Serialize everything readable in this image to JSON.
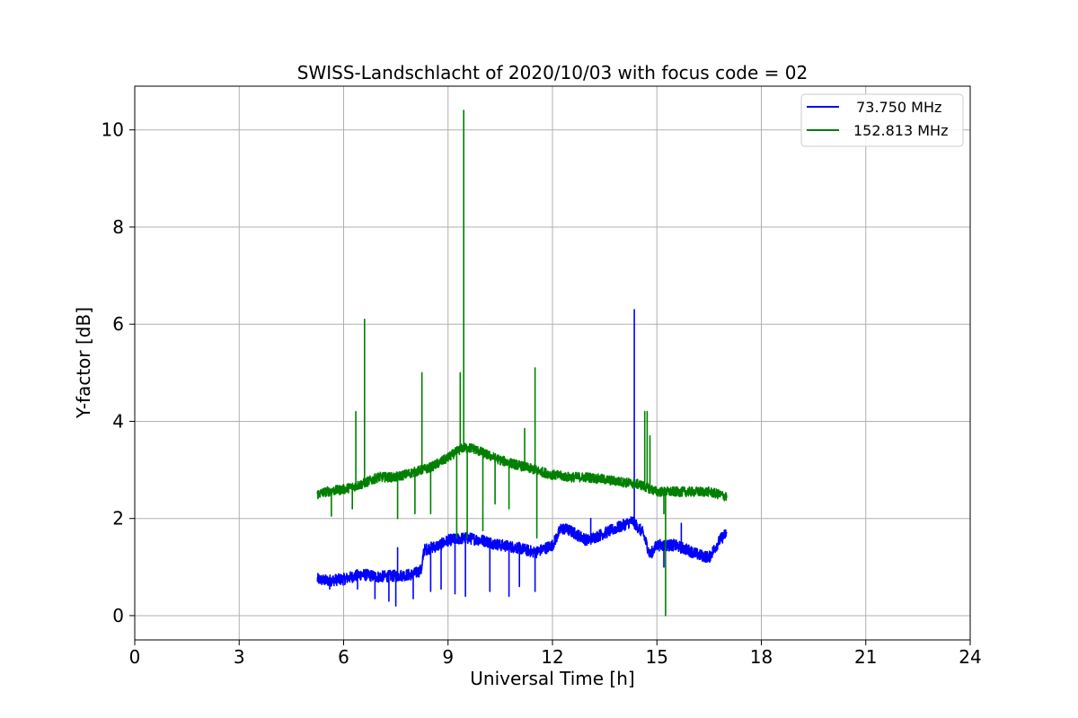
{
  "chart_data": {
    "type": "line",
    "title": "SWISS-Landschlacht of 2020/10/03 with focus code = 02",
    "xlabel": "Universal Time [h]",
    "ylabel": "Y-factor [dB]",
    "xlim": [
      0,
      24
    ],
    "ylim": [
      -0.5,
      10.9
    ],
    "xticks": [
      0,
      3,
      6,
      9,
      12,
      15,
      18,
      21,
      24
    ],
    "yticks": [
      0,
      2,
      4,
      6,
      8,
      10
    ],
    "xtick_labels": [
      "0",
      "3",
      "6",
      "9",
      "12",
      "15",
      "18",
      "21",
      "24"
    ],
    "ytick_labels": [
      "0",
      "2",
      "4",
      "6",
      "8",
      "10"
    ],
    "grid": true,
    "legend_position": "top-right",
    "series": [
      {
        "name": " 73.750 MHz",
        "color": "#0000ff",
        "baseline": [
          [
            5.25,
            0.75
          ],
          [
            5.5,
            0.72
          ],
          [
            6.0,
            0.75
          ],
          [
            6.5,
            0.85
          ],
          [
            7.0,
            0.8
          ],
          [
            7.5,
            0.82
          ],
          [
            8.0,
            0.85
          ],
          [
            8.25,
            0.95
          ],
          [
            8.3,
            1.35
          ],
          [
            8.75,
            1.45
          ],
          [
            9.0,
            1.55
          ],
          [
            9.5,
            1.6
          ],
          [
            10.0,
            1.55
          ],
          [
            10.5,
            1.45
          ],
          [
            11.0,
            1.4
          ],
          [
            11.5,
            1.3
          ],
          [
            12.0,
            1.45
          ],
          [
            12.25,
            1.8
          ],
          [
            12.5,
            1.75
          ],
          [
            13.0,
            1.55
          ],
          [
            13.5,
            1.7
          ],
          [
            14.0,
            1.85
          ],
          [
            14.3,
            1.95
          ],
          [
            14.6,
            1.7
          ],
          [
            14.8,
            1.25
          ],
          [
            15.0,
            1.45
          ],
          [
            15.5,
            1.45
          ],
          [
            15.9,
            1.35
          ],
          [
            16.2,
            1.25
          ],
          [
            16.5,
            1.2
          ],
          [
            16.8,
            1.55
          ],
          [
            17.0,
            1.7
          ]
        ],
        "noise": 0.12,
        "spikes": [
          [
            5.6,
            0.55
          ],
          [
            6.4,
            0.55
          ],
          [
            6.9,
            0.35
          ],
          [
            7.3,
            0.3
          ],
          [
            7.5,
            0.2
          ],
          [
            7.55,
            1.4
          ],
          [
            8.0,
            0.35
          ],
          [
            8.5,
            0.5
          ],
          [
            8.8,
            0.55
          ],
          [
            9.2,
            0.45
          ],
          [
            9.5,
            0.4
          ],
          [
            10.2,
            0.5
          ],
          [
            10.75,
            0.4
          ],
          [
            11.05,
            0.6
          ],
          [
            11.5,
            0.5
          ],
          [
            12.2,
            1.7
          ],
          [
            13.1,
            2.0
          ],
          [
            14.35,
            6.3
          ],
          [
            15.2,
            1.0
          ],
          [
            15.7,
            1.9
          ]
        ]
      },
      {
        "name": "152.813 MHz",
        "color": "#008000",
        "baseline": [
          [
            5.25,
            2.5
          ],
          [
            5.5,
            2.55
          ],
          [
            6.0,
            2.6
          ],
          [
            6.5,
            2.7
          ],
          [
            7.0,
            2.85
          ],
          [
            7.5,
            2.85
          ],
          [
            8.0,
            2.95
          ],
          [
            8.5,
            3.05
          ],
          [
            9.0,
            3.25
          ],
          [
            9.4,
            3.45
          ],
          [
            9.7,
            3.45
          ],
          [
            10.0,
            3.35
          ],
          [
            10.5,
            3.2
          ],
          [
            11.0,
            3.1
          ],
          [
            11.5,
            3.0
          ],
          [
            12.0,
            2.9
          ],
          [
            12.5,
            2.85
          ],
          [
            13.0,
            2.85
          ],
          [
            13.5,
            2.8
          ],
          [
            14.0,
            2.75
          ],
          [
            14.5,
            2.7
          ],
          [
            15.0,
            2.55
          ],
          [
            15.5,
            2.55
          ],
          [
            16.0,
            2.55
          ],
          [
            16.5,
            2.55
          ],
          [
            17.0,
            2.45
          ]
        ],
        "noise": 0.1,
        "spikes": [
          [
            5.65,
            2.05
          ],
          [
            6.25,
            2.2
          ],
          [
            6.35,
            4.2
          ],
          [
            6.6,
            6.1
          ],
          [
            7.55,
            2.0
          ],
          [
            8.05,
            2.1
          ],
          [
            8.25,
            5.0
          ],
          [
            8.5,
            2.1
          ],
          [
            9.25,
            1.6
          ],
          [
            9.35,
            5.0
          ],
          [
            9.45,
            10.4
          ],
          [
            9.55,
            1.6
          ],
          [
            10.0,
            1.75
          ],
          [
            10.35,
            2.3
          ],
          [
            10.75,
            2.2
          ],
          [
            11.2,
            3.85
          ],
          [
            11.5,
            5.1
          ],
          [
            11.55,
            1.6
          ],
          [
            14.65,
            4.2
          ],
          [
            14.72,
            4.2
          ],
          [
            14.8,
            3.7
          ],
          [
            15.2,
            2.1
          ],
          [
            15.25,
            0.0
          ]
        ]
      }
    ]
  }
}
